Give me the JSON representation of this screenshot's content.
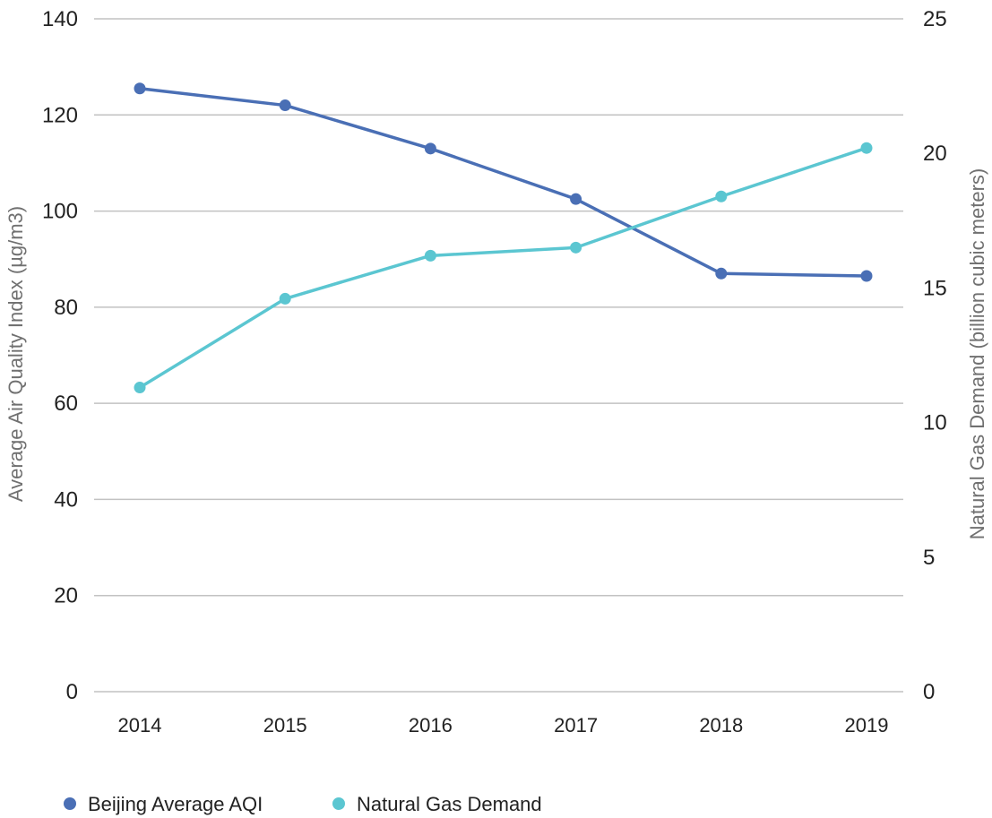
{
  "chart_data": {
    "type": "line",
    "categories": [
      "2014",
      "2015",
      "2016",
      "2017",
      "2018",
      "2019"
    ],
    "y_left": {
      "label": "Average Air Quality Index (µg/m3)",
      "ticks": [
        "0",
        "20",
        "40",
        "60",
        "80",
        "100",
        "120",
        "140"
      ],
      "range": [
        0,
        140
      ]
    },
    "y_right": {
      "label": "Natural Gas Demand (billion cubic meters)",
      "ticks": [
        "0",
        "5",
        "10",
        "15",
        "20",
        "25"
      ],
      "range": [
        0,
        25
      ]
    },
    "series": [
      {
        "name": "Beijing Average AQI",
        "axis": "left",
        "color": "#4a6fb5",
        "values": [
          125.5,
          122,
          113,
          102.5,
          87,
          86.5
        ]
      },
      {
        "name": "Natural Gas Demand",
        "axis": "right",
        "color": "#5bc6d1",
        "values": [
          11.3,
          14.6,
          16.2,
          16.5,
          18.4,
          20.2
        ]
      }
    ],
    "grid": true,
    "legend_position": "bottom-left"
  }
}
